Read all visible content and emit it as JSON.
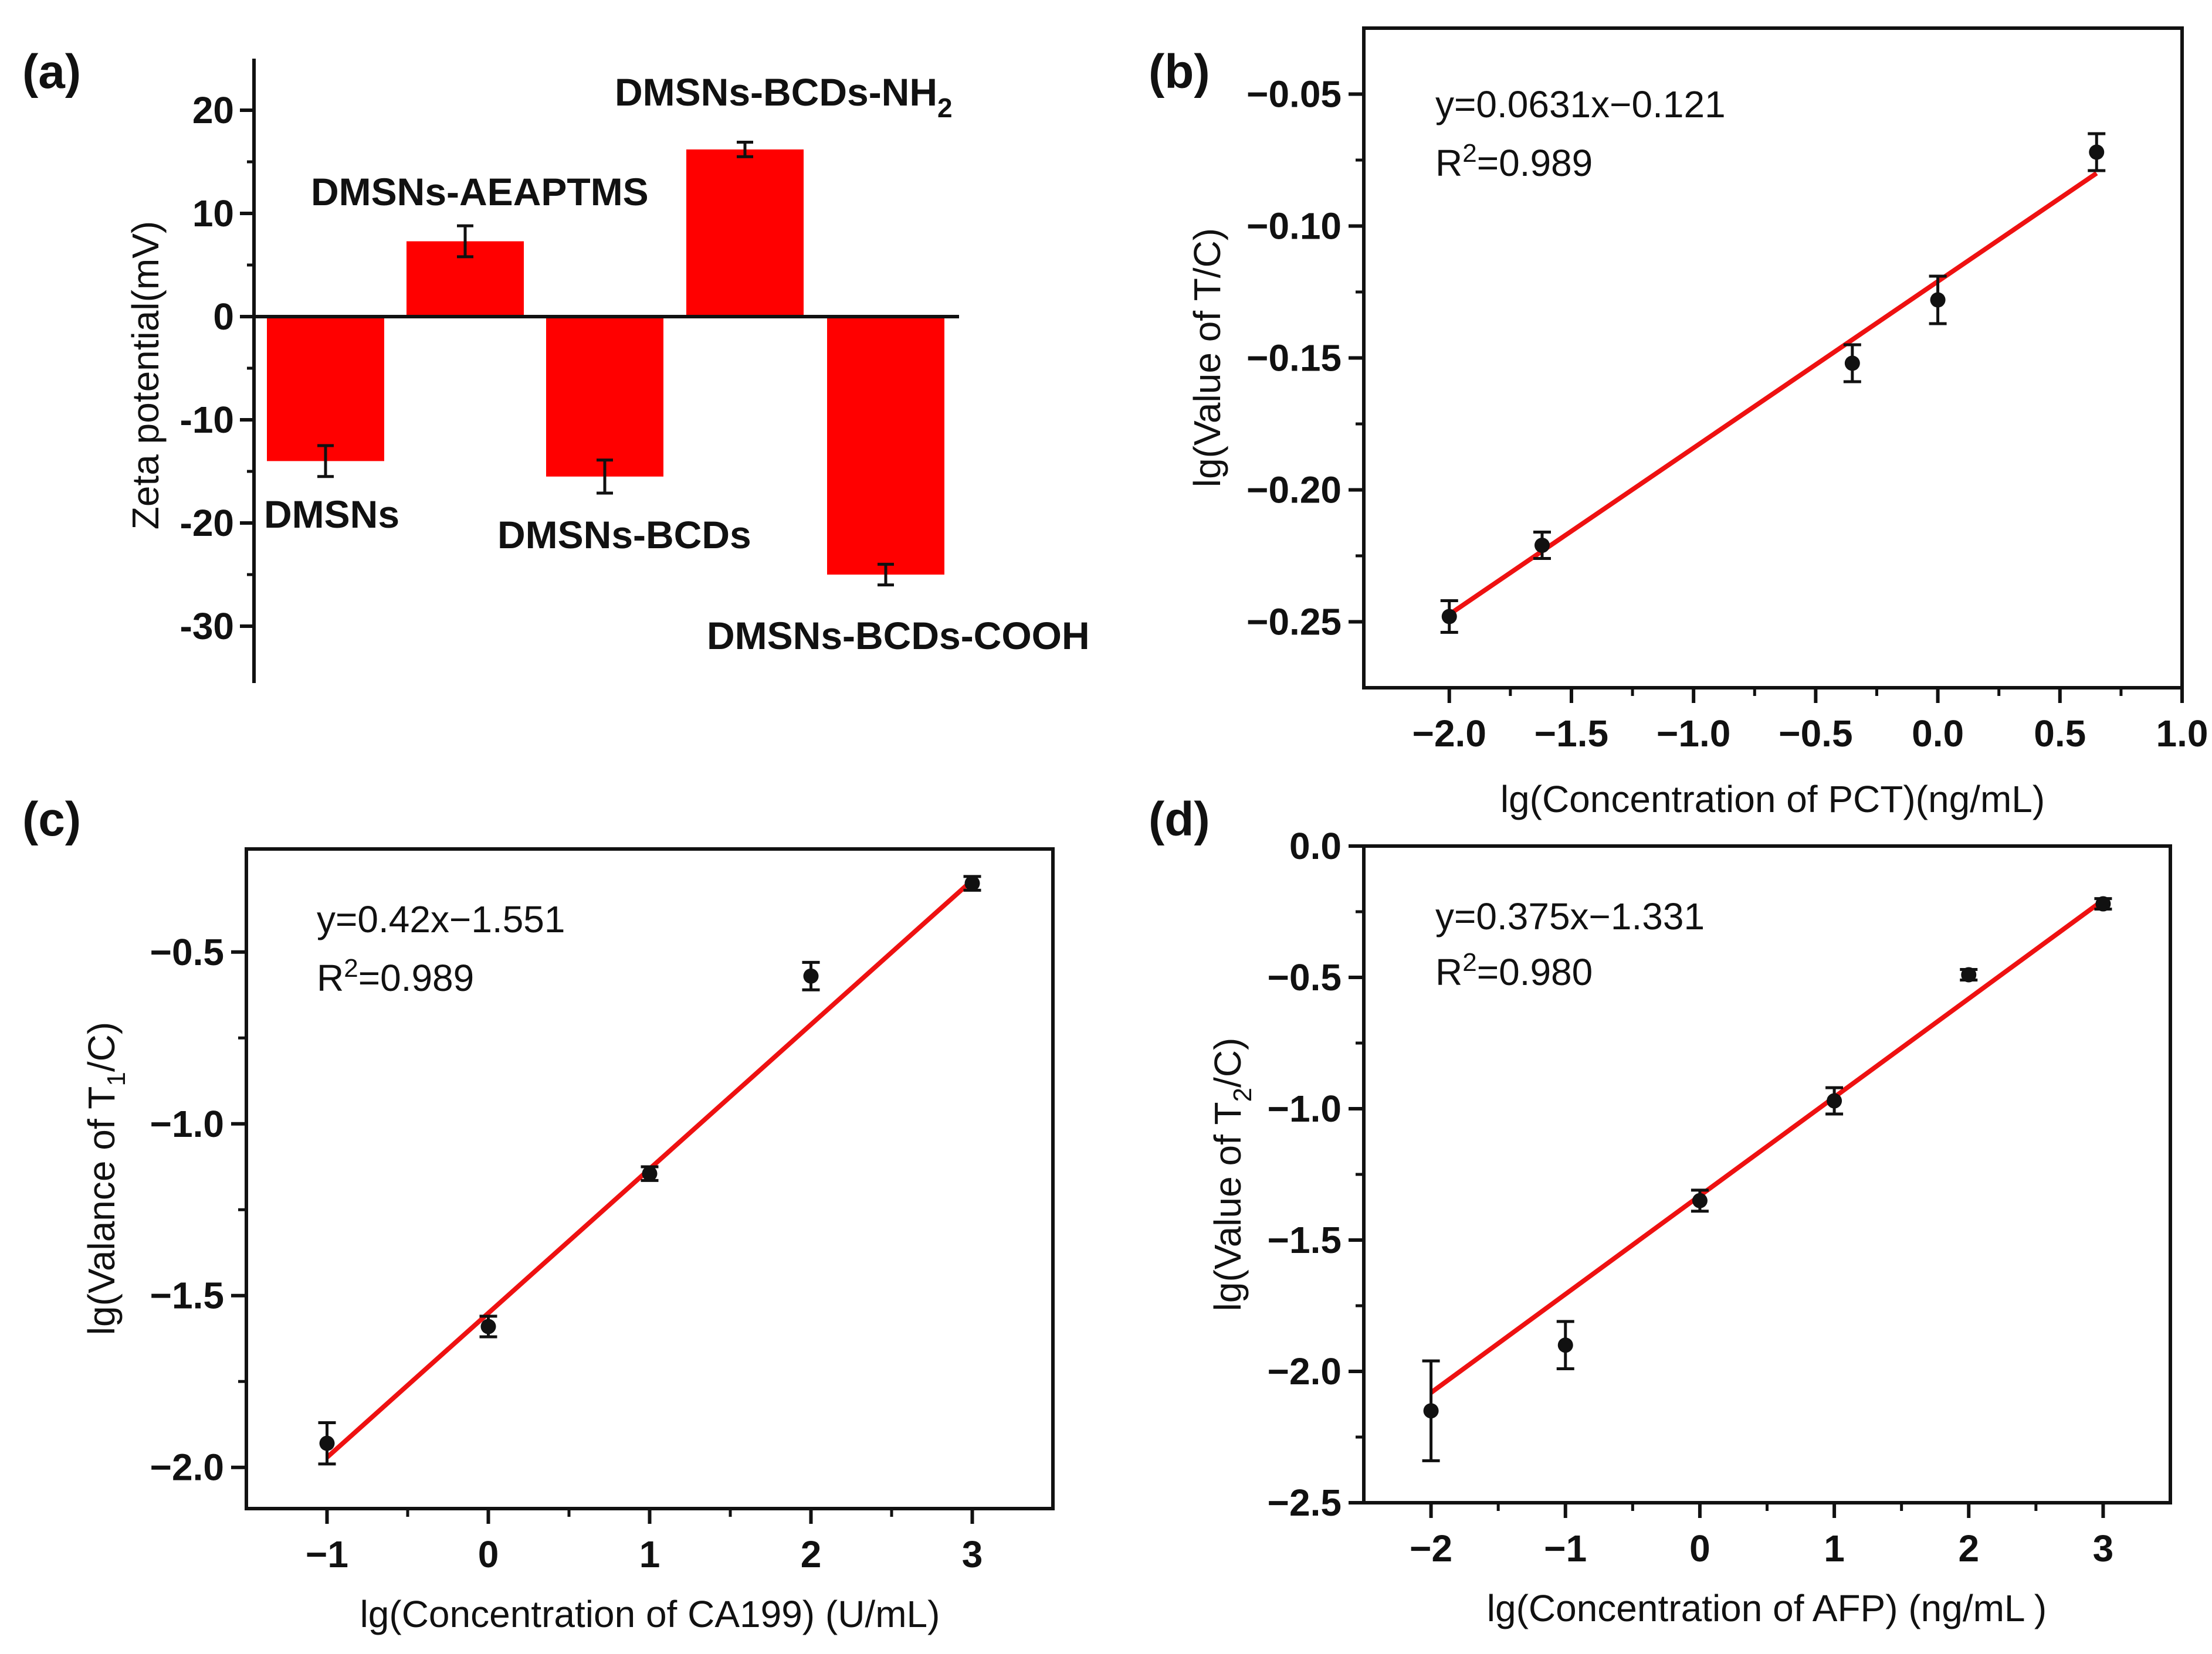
{
  "figure": {
    "panels": [
      {
        "id": "a",
        "label": "(a)"
      },
      {
        "id": "b",
        "label": "(b)"
      },
      {
        "id": "c",
        "label": "(c)"
      },
      {
        "id": "d",
        "label": "(d)"
      }
    ]
  },
  "chart_data": [
    {
      "panel": "(a)",
      "type": "bar",
      "categories": [
        "DMSNs",
        "DMSNs-AEAPTMS",
        "DMSNs-BCDs",
        "DMSNs-BCDs-NH2",
        "DMSNs-BCDs-COOH"
      ],
      "category_labels": [
        "DMSNs",
        "DMSNs-AEAPTMS",
        "DMSNs-BCDs",
        "DMSNs-BCDs-NH",
        "DMSNs-BCDs-COOH"
      ],
      "category_label_subscripts": [
        "",
        "",
        "",
        "2",
        ""
      ],
      "values": [
        -14,
        7.3,
        -15.5,
        16.2,
        -25
      ],
      "errors": [
        1.5,
        1.5,
        1.6,
        0.7,
        1.0
      ],
      "ylabel": "Zeta potential(mV)",
      "ylim": [
        -35,
        25
      ],
      "yticks": [
        20,
        10,
        0,
        -10,
        -20,
        -30
      ],
      "ytick_labels": [
        "20",
        "10",
        "0",
        "-10",
        "-20",
        "-30"
      ],
      "bar_color": "#ff0000"
    },
    {
      "panel": "(b)",
      "type": "scatter",
      "x": [
        -2.0,
        -1.62,
        -0.35,
        0.0,
        0.65
      ],
      "y": [
        -0.248,
        -0.221,
        -0.152,
        -0.128,
        -0.072
      ],
      "yerr": [
        0.006,
        0.005,
        0.007,
        0.009,
        0.007
      ],
      "fit": {
        "slope": 0.0631,
        "intercept": -0.121,
        "x_range": [
          -2.0,
          0.65
        ]
      },
      "annotation": [
        "y=0.0631x−0.121",
        "R",
        "2",
        "=0.989"
      ],
      "xlabel": "lg(Concentration of PCT)(ng/mL)",
      "ylabel": "lg(Value of T/C)",
      "xlim": [
        -2.35,
        1.0
      ],
      "ylim": [
        -0.275,
        -0.025
      ],
      "xticks": [
        -2.0,
        -1.5,
        -1.0,
        -0.5,
        0.0,
        0.5,
        1.0
      ],
      "xtick_labels": [
        "−2.0",
        "−1.5",
        "−1.0",
        "−0.5",
        "0.0",
        "0.5",
        "1.0"
      ],
      "yticks": [
        -0.05,
        -0.1,
        -0.15,
        -0.2,
        -0.25
      ],
      "ytick_labels": [
        "−0.05",
        "−0.10",
        "−0.15",
        "−0.20",
        "−0.25"
      ],
      "line_color": "#ee1111"
    },
    {
      "panel": "(c)",
      "type": "scatter",
      "x": [
        -1,
        0,
        1,
        2,
        3
      ],
      "y": [
        -1.93,
        -1.59,
        -1.145,
        -0.57,
        -0.3
      ],
      "yerr": [
        0.06,
        0.03,
        0.02,
        0.04,
        0.02
      ],
      "fit": {
        "slope": 0.42,
        "intercept": -1.551,
        "x_range": [
          -1,
          3
        ]
      },
      "annotation": [
        "y=0.42x−1.551",
        "R",
        "2",
        "=0.989"
      ],
      "xlabel": "lg(Concentration of CA199) (U/mL)",
      "ylabel_parts": [
        "lg(Valance of T",
        "1",
        "/C)"
      ],
      "xlim": [
        -1.5,
        3.5
      ],
      "ylim": [
        -2.12,
        -0.2
      ],
      "xticks": [
        -1,
        0,
        1,
        2,
        3
      ],
      "xtick_labels": [
        "−1",
        "0",
        "1",
        "2",
        "3"
      ],
      "yticks": [
        -0.5,
        -1.0,
        -1.5,
        -2.0
      ],
      "ytick_labels": [
        "−0.5",
        "−1.0",
        "−1.5",
        "−2.0"
      ],
      "line_color": "#ee1111"
    },
    {
      "panel": "(d)",
      "type": "scatter",
      "x": [
        -2,
        -1,
        0,
        1,
        2,
        3
      ],
      "y": [
        -2.15,
        -1.9,
        -1.35,
        -0.97,
        -0.49,
        -0.22
      ],
      "yerr": [
        0.19,
        0.09,
        0.04,
        0.05,
        0.02,
        0.02
      ],
      "fit": {
        "slope": 0.375,
        "intercept": -1.331,
        "x_range": [
          -2,
          3
        ]
      },
      "annotation": [
        "y=0.375x−1.331",
        "R",
        "2",
        "=0.980"
      ],
      "xlabel": "lg(Concentration of AFP) (ng/mL )",
      "ylabel_parts": [
        "lg(Value of T",
        "2",
        "/C)"
      ],
      "xlim": [
        -2.5,
        3.5
      ],
      "ylim": [
        -2.5,
        0.0
      ],
      "xticks": [
        -2,
        -1,
        0,
        1,
        2,
        3
      ],
      "xtick_labels": [
        "−2",
        "−1",
        "0",
        "1",
        "2",
        "3"
      ],
      "yticks": [
        0.0,
        -0.5,
        -1.0,
        -1.5,
        -2.0,
        -2.5
      ],
      "ytick_labels": [
        "0.0",
        "−0.5",
        "−1.0",
        "−1.5",
        "−2.0",
        "−2.5"
      ],
      "line_color": "#ee1111"
    }
  ]
}
